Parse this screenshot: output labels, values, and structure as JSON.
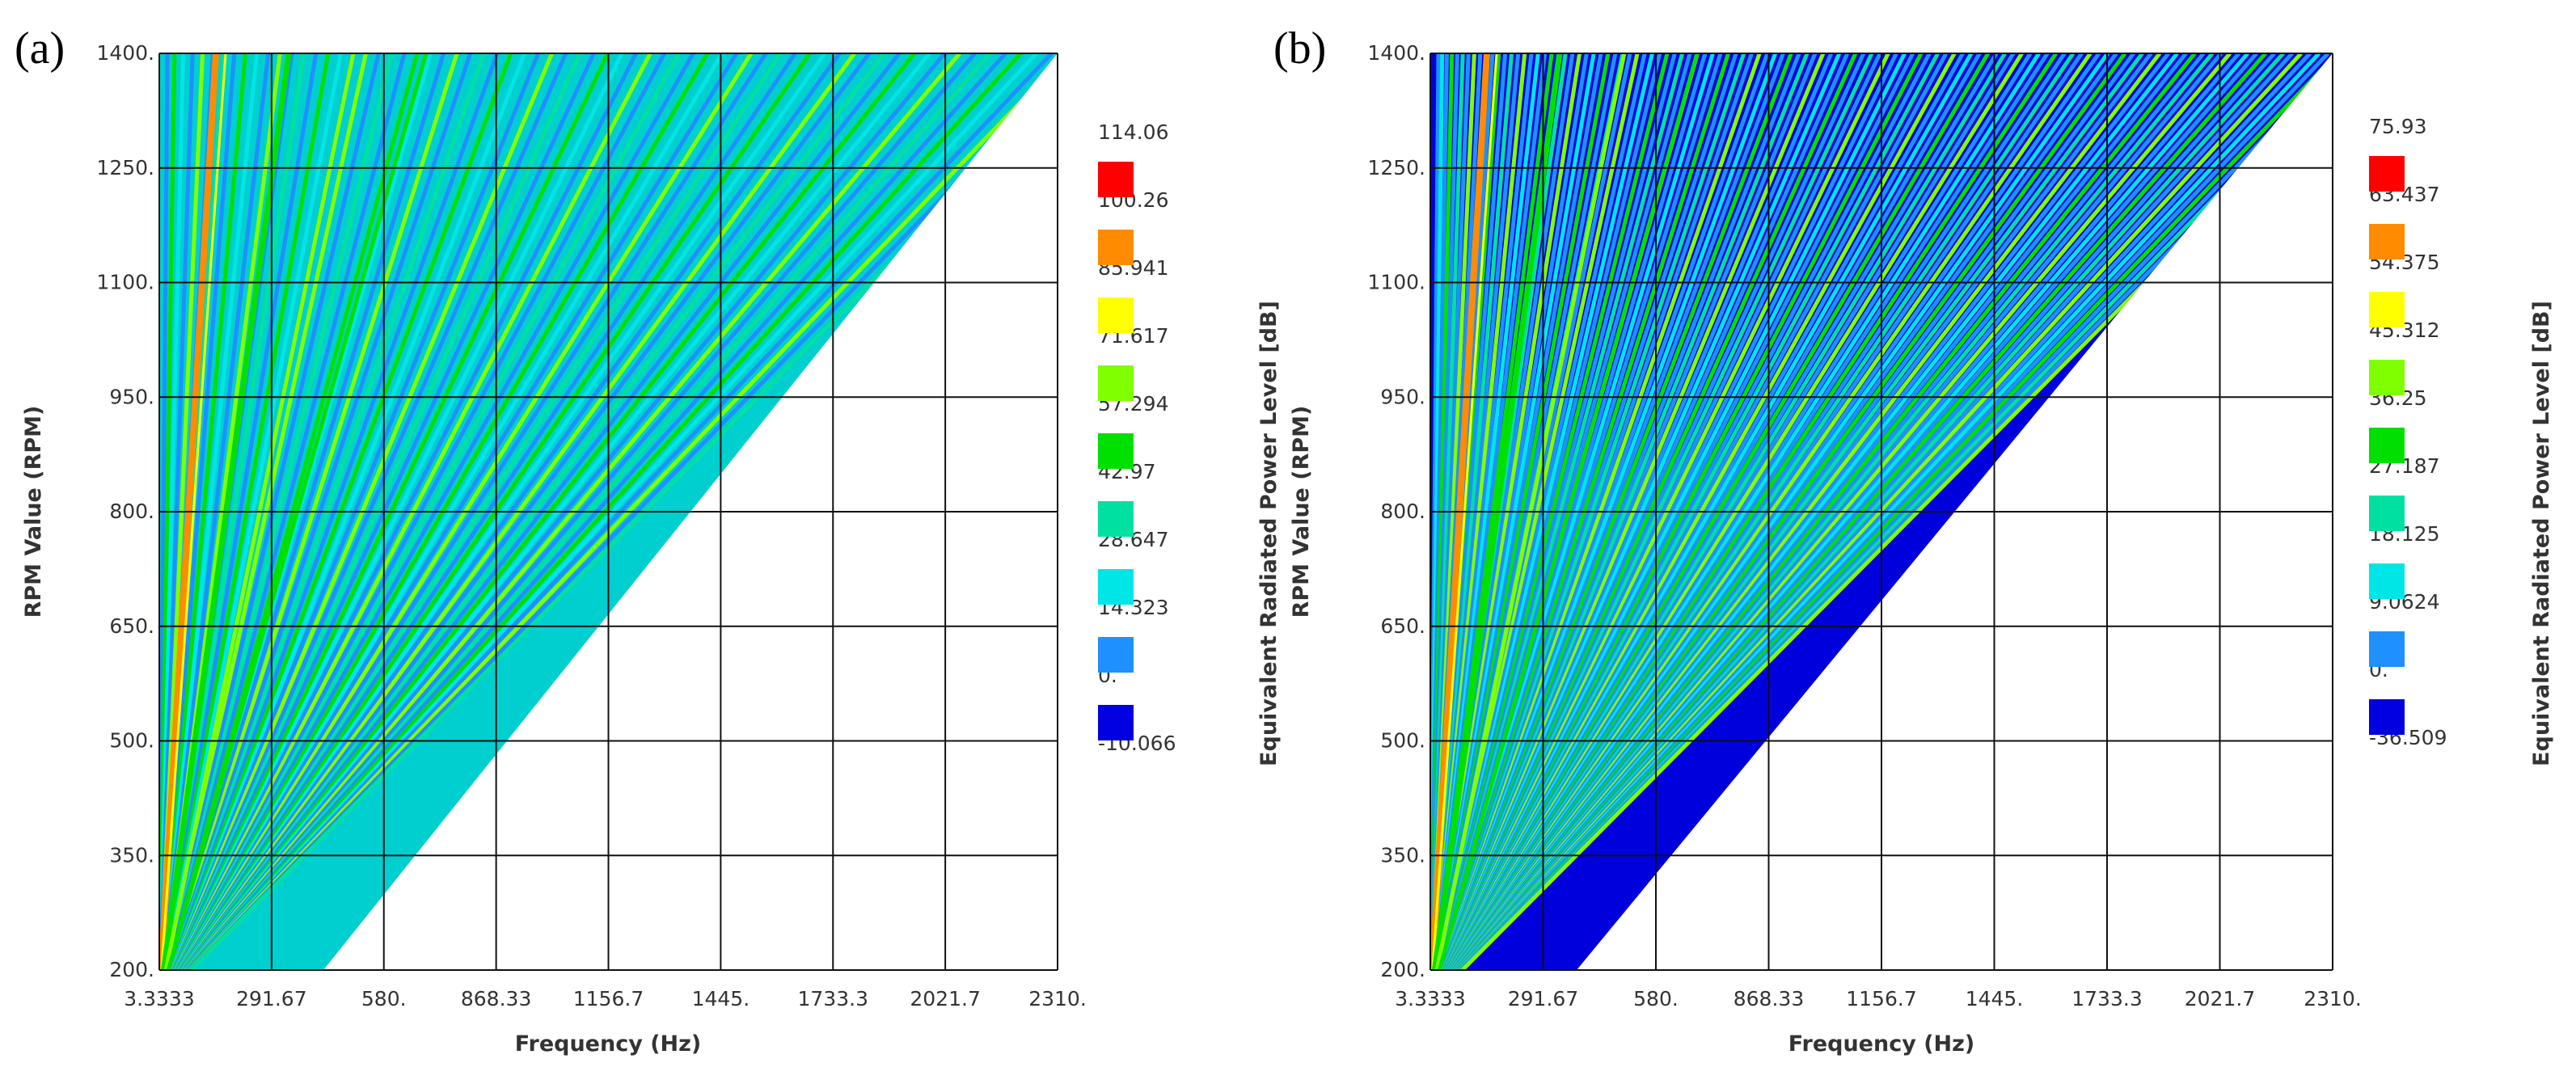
{
  "chart_data": [
    {
      "type": "heatmap",
      "panel_label": "(a)",
      "xlabel": "Frequency (Hz)",
      "ylabel": "RPM Value (RPM)",
      "colorbar_label": "Equivalent Radiated Power Level [dB]",
      "x_ticks": [
        "3.3333",
        "291.67",
        "580.",
        "868.33",
        "1156.7",
        "1445.",
        "1733.3",
        "2021.7",
        "2310."
      ],
      "y_ticks": [
        "200.",
        "350.",
        "500.",
        "650.",
        "800.",
        "950.",
        "1100.",
        "1250.",
        "1400."
      ],
      "xlim": [
        3.3333,
        2310
      ],
      "ylim": [
        200,
        1400
      ],
      "colorbar_values": [
        "114.06",
        "100.26",
        "85.941",
        "71.617",
        "57.294",
        "42.97",
        "28.647",
        "14.323",
        "0.",
        "-10.066"
      ],
      "colorbar_colors": [
        "#ff0000",
        "#ff8c00",
        "#ffff00",
        "#80ff00",
        "#00e000",
        "#00e0a0",
        "#00e5e5",
        "#1e90ff",
        "#0000e0"
      ],
      "background_color": "#00cfcf",
      "order_line_color": "#1e90ff"
    },
    {
      "type": "heatmap",
      "panel_label": "(b)",
      "xlabel": "Frequency (Hz)",
      "ylabel": "RPM Value (RPM)",
      "colorbar_label": "Equivalent Radiated Power Level [dB]",
      "x_ticks": [
        "3.3333",
        "291.67",
        "580.",
        "868.33",
        "1156.7",
        "1445.",
        "1733.3",
        "2021.7",
        "2310."
      ],
      "y_ticks": [
        "200.",
        "350.",
        "500.",
        "650.",
        "800.",
        "950.",
        "1100.",
        "1250.",
        "1400."
      ],
      "xlim": [
        3.3333,
        2310
      ],
      "ylim": [
        200,
        1400
      ],
      "colorbar_values": [
        "75.93",
        "63.437",
        "54.375",
        "45.312",
        "36.25",
        "27.187",
        "18.125",
        "9.0624",
        "0.",
        "-36.509"
      ],
      "colorbar_colors": [
        "#ff0000",
        "#ff8c00",
        "#ffff00",
        "#80ff00",
        "#00e000",
        "#00e0a0",
        "#00e5e5",
        "#1e90ff",
        "#0000e0"
      ],
      "background_color": "#0000dd",
      "order_line_color": "#1e90ff"
    }
  ]
}
